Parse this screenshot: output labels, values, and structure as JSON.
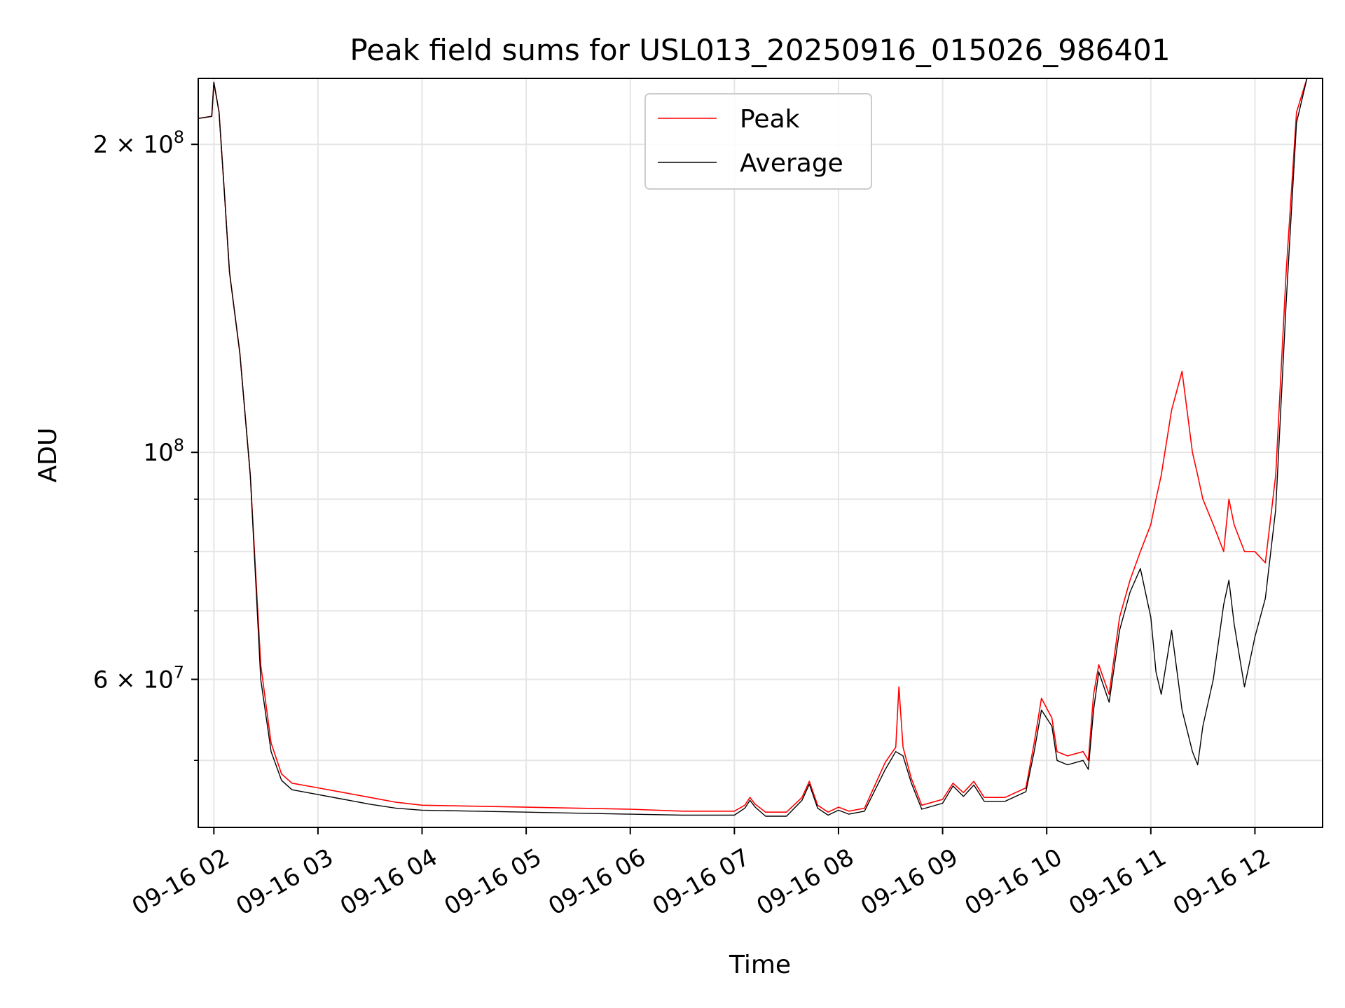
{
  "chart_data": {
    "type": "line",
    "title": "Peak field sums for USL013_20250916_015026_986401",
    "xlabel": "Time",
    "ylabel": "ADU",
    "yscale": "log",
    "xlim": [
      1.85,
      12.65
    ],
    "ylim": [
      43000000,
      232000000
    ],
    "grid": true,
    "legend_position": "upper center",
    "x_ticks": [
      {
        "value": 2,
        "label": "09-16 02"
      },
      {
        "value": 3,
        "label": "09-16 03"
      },
      {
        "value": 4,
        "label": "09-16 04"
      },
      {
        "value": 5,
        "label": "09-16 05"
      },
      {
        "value": 6,
        "label": "09-16 06"
      },
      {
        "value": 7,
        "label": "09-16 07"
      },
      {
        "value": 8,
        "label": "09-16 08"
      },
      {
        "value": 9,
        "label": "09-16 09"
      },
      {
        "value": 10,
        "label": "09-16 10"
      },
      {
        "value": 11,
        "label": "09-16 11"
      },
      {
        "value": 12,
        "label": "09-16 12"
      }
    ],
    "y_major_ticks": [
      {
        "value": 60000000,
        "base": "6",
        "exp": "7"
      },
      {
        "value": 100000000,
        "base": "",
        "exp": "8"
      },
      {
        "value": 200000000,
        "base": "2",
        "exp": "8"
      }
    ],
    "y_minor_ticks": [
      50000000,
      70000000,
      80000000,
      90000000
    ],
    "series": [
      {
        "name": "Peak",
        "color": "#ff0000",
        "x": [
          1.85,
          1.98,
          2.0,
          2.05,
          2.1,
          2.15,
          2.25,
          2.35,
          2.45,
          2.55,
          2.65,
          2.75,
          3.0,
          3.25,
          3.5,
          3.75,
          4.0,
          4.5,
          5.0,
          5.5,
          6.0,
          6.5,
          7.0,
          7.1,
          7.15,
          7.2,
          7.3,
          7.5,
          7.65,
          7.72,
          7.8,
          7.9,
          8.0,
          8.1,
          8.25,
          8.45,
          8.55,
          8.58,
          8.62,
          8.7,
          8.8,
          9.0,
          9.1,
          9.2,
          9.3,
          9.4,
          9.6,
          9.8,
          9.88,
          9.95,
          10.05,
          10.1,
          10.2,
          10.35,
          10.4,
          10.45,
          10.5,
          10.6,
          10.7,
          10.8,
          10.9,
          11.0,
          11.05,
          11.1,
          11.2,
          11.3,
          11.4,
          11.45,
          11.5,
          11.6,
          11.7,
          11.75,
          11.8,
          11.9,
          12.0,
          12.1,
          12.2,
          12.3,
          12.4,
          12.5
        ],
        "y": [
          212000000,
          213000000,
          230000000,
          215000000,
          180000000,
          150000000,
          125000000,
          95000000,
          62000000,
          52000000,
          48500000,
          47500000,
          47000000,
          46500000,
          46000000,
          45500000,
          45200000,
          45100000,
          45000000,
          44900000,
          44800000,
          44600000,
          44600000,
          45200000,
          46000000,
          45300000,
          44500000,
          44500000,
          46000000,
          47700000,
          45200000,
          44500000,
          45000000,
          44600000,
          44900000,
          49800000,
          51500000,
          59000000,
          51500000,
          48000000,
          45200000,
          45800000,
          47500000,
          46500000,
          47700000,
          46000000,
          46000000,
          47000000,
          52000000,
          57500000,
          55000000,
          51000000,
          50500000,
          51000000,
          50000000,
          58000000,
          62000000,
          58000000,
          69000000,
          75000000,
          80000000,
          85000000,
          90000000,
          95000000,
          110000000,
          120000000,
          100000000,
          95000000,
          90000000,
          85000000,
          80000000,
          90000000,
          85000000,
          80000000,
          80000000,
          78000000,
          95000000,
          150000000,
          215000000,
          232000000
        ]
      },
      {
        "name": "Average",
        "color": "#000000",
        "x": [
          1.85,
          1.98,
          2.0,
          2.05,
          2.1,
          2.15,
          2.25,
          2.35,
          2.45,
          2.55,
          2.65,
          2.75,
          3.0,
          3.25,
          3.5,
          3.75,
          4.0,
          4.5,
          5.0,
          5.5,
          6.0,
          6.5,
          7.0,
          7.1,
          7.15,
          7.2,
          7.3,
          7.5,
          7.65,
          7.72,
          7.8,
          7.9,
          8.0,
          8.1,
          8.25,
          8.45,
          8.55,
          8.62,
          8.7,
          8.8,
          9.0,
          9.1,
          9.2,
          9.3,
          9.4,
          9.6,
          9.8,
          9.88,
          9.95,
          10.05,
          10.1,
          10.2,
          10.35,
          10.4,
          10.45,
          10.5,
          10.6,
          10.7,
          10.8,
          10.9,
          11.0,
          11.05,
          11.1,
          11.2,
          11.3,
          11.4,
          11.45,
          11.5,
          11.6,
          11.7,
          11.75,
          11.8,
          11.9,
          12.0,
          12.1,
          12.2,
          12.3,
          12.4,
          12.5
        ],
        "y": [
          212000000,
          213000000,
          230000000,
          215000000,
          180000000,
          150000000,
          125000000,
          95000000,
          60000000,
          51000000,
          47800000,
          46800000,
          46300000,
          45800000,
          45300000,
          44900000,
          44700000,
          44600000,
          44500000,
          44400000,
          44300000,
          44200000,
          44200000,
          44900000,
          45700000,
          45000000,
          44100000,
          44100000,
          45700000,
          47400000,
          44900000,
          44200000,
          44700000,
          44300000,
          44600000,
          49000000,
          51000000,
          50500000,
          47500000,
          44800000,
          45400000,
          47200000,
          46100000,
          47300000,
          45600000,
          45600000,
          46600000,
          51000000,
          56000000,
          54000000,
          50000000,
          49500000,
          50000000,
          49000000,
          56000000,
          61000000,
          57000000,
          67000000,
          73000000,
          77000000,
          69000000,
          61000000,
          58000000,
          67000000,
          56000000,
          51000000,
          49500000,
          54000000,
          60000000,
          71000000,
          75000000,
          68000000,
          59000000,
          66000000,
          72000000,
          88000000,
          140000000,
          210000000,
          232000000
        ]
      }
    ]
  }
}
